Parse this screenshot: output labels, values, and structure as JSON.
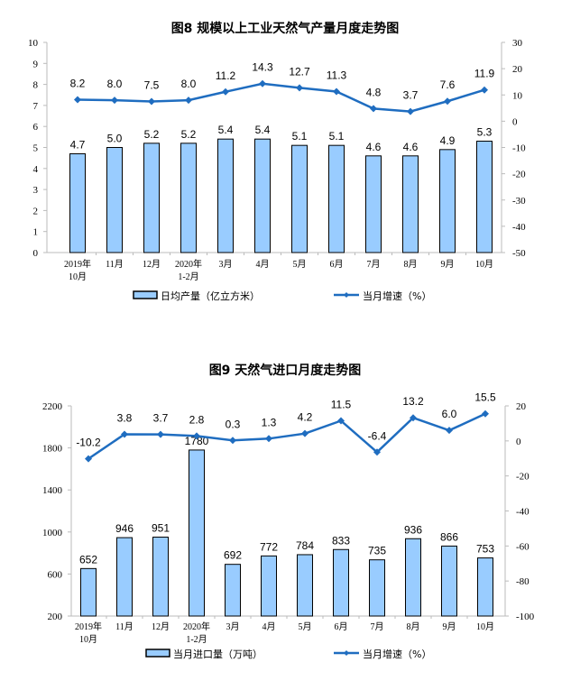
{
  "colors": {
    "bar_fill": "#99CCFF",
    "bar_stroke": "#000000",
    "line": "#1F6DC0"
  },
  "chart_data": [
    {
      "type": "bar+line",
      "title": "图8  规模以上工业天然气产量月度走势图",
      "categories": [
        [
          "2019年",
          "10月"
        ],
        [
          "11月"
        ],
        [
          "12月"
        ],
        [
          "2020年",
          "1-2月"
        ],
        [
          "3月"
        ],
        [
          "4月"
        ],
        [
          "5月"
        ],
        [
          "6月"
        ],
        [
          "7月"
        ],
        [
          "8月"
        ],
        [
          "9月"
        ],
        [
          "10月"
        ]
      ],
      "series": [
        {
          "name": "日均产量（亿立方米）",
          "type": "bar",
          "axis": "left",
          "values": [
            4.7,
            5.0,
            5.2,
            5.2,
            5.4,
            5.4,
            5.1,
            5.1,
            4.6,
            4.6,
            4.9,
            5.3
          ],
          "labels": [
            "4.7",
            "5.0",
            "5.2",
            "5.2",
            "5.4",
            "5.4",
            "5.1",
            "5.1",
            "4.6",
            "4.6",
            "4.9",
            "5.3"
          ]
        },
        {
          "name": "当月增速（%）",
          "type": "line",
          "axis": "right",
          "values": [
            8.2,
            8.0,
            7.5,
            8.0,
            11.2,
            14.3,
            12.7,
            11.3,
            4.8,
            3.7,
            7.6,
            11.9
          ],
          "labels": [
            "8.2",
            "8.0",
            "7.5",
            "8.0",
            "11.2",
            "14.3",
            "12.7",
            "11.3",
            "4.8",
            "3.7",
            "7.6",
            "11.9"
          ]
        }
      ],
      "ylim_left": [
        0,
        10
      ],
      "yticks_left": [
        "0",
        "1",
        "2",
        "3",
        "4",
        "5",
        "6",
        "7",
        "8",
        "9",
        "10"
      ],
      "ylim_right": [
        -50,
        30
      ],
      "yticks_right": [
        "-50",
        "-40",
        "-30",
        "-20",
        "-10",
        "0",
        "10",
        "20",
        "30"
      ],
      "legend": "bottom"
    },
    {
      "type": "bar+line",
      "title": "图9  天然气进口月度走势图",
      "categories": [
        [
          "2019年",
          "10月"
        ],
        [
          "11月"
        ],
        [
          "12月"
        ],
        [
          "2020年",
          "1-2月"
        ],
        [
          "3月"
        ],
        [
          "4月"
        ],
        [
          "5月"
        ],
        [
          "6月"
        ],
        [
          "7月"
        ],
        [
          "8月"
        ],
        [
          "9月"
        ],
        [
          "10月"
        ]
      ],
      "series": [
        {
          "name": "当月进口量（万吨）",
          "type": "bar",
          "axis": "left",
          "values": [
            652,
            946,
            951,
            1780,
            692,
            772,
            784,
            833,
            735,
            936,
            866,
            753
          ],
          "labels": [
            "652",
            "946",
            "951",
            "1780",
            "692",
            "772",
            "784",
            "833",
            "735",
            "936",
            "866",
            "753"
          ]
        },
        {
          "name": "当月增速（%）",
          "type": "line",
          "axis": "right",
          "values": [
            -10.2,
            3.8,
            3.7,
            2.8,
            0.3,
            1.3,
            4.2,
            11.5,
            -6.4,
            13.2,
            6.0,
            15.5
          ],
          "labels": [
            "-10.2",
            "3.8",
            "3.7",
            "2.8",
            "0.3",
            "1.3",
            "4.2",
            "11.5",
            "-6.4",
            "13.2",
            "6.0",
            "15.5"
          ]
        }
      ],
      "ylim_left": [
        200,
        2200
      ],
      "yticks_left": [
        "200",
        "600",
        "1000",
        "1400",
        "1800",
        "2200"
      ],
      "ylim_right": [
        -100,
        20
      ],
      "yticks_right": [
        "-100",
        "-80",
        "-60",
        "-40",
        "-20",
        "0",
        "20"
      ],
      "legend": "bottom"
    }
  ]
}
